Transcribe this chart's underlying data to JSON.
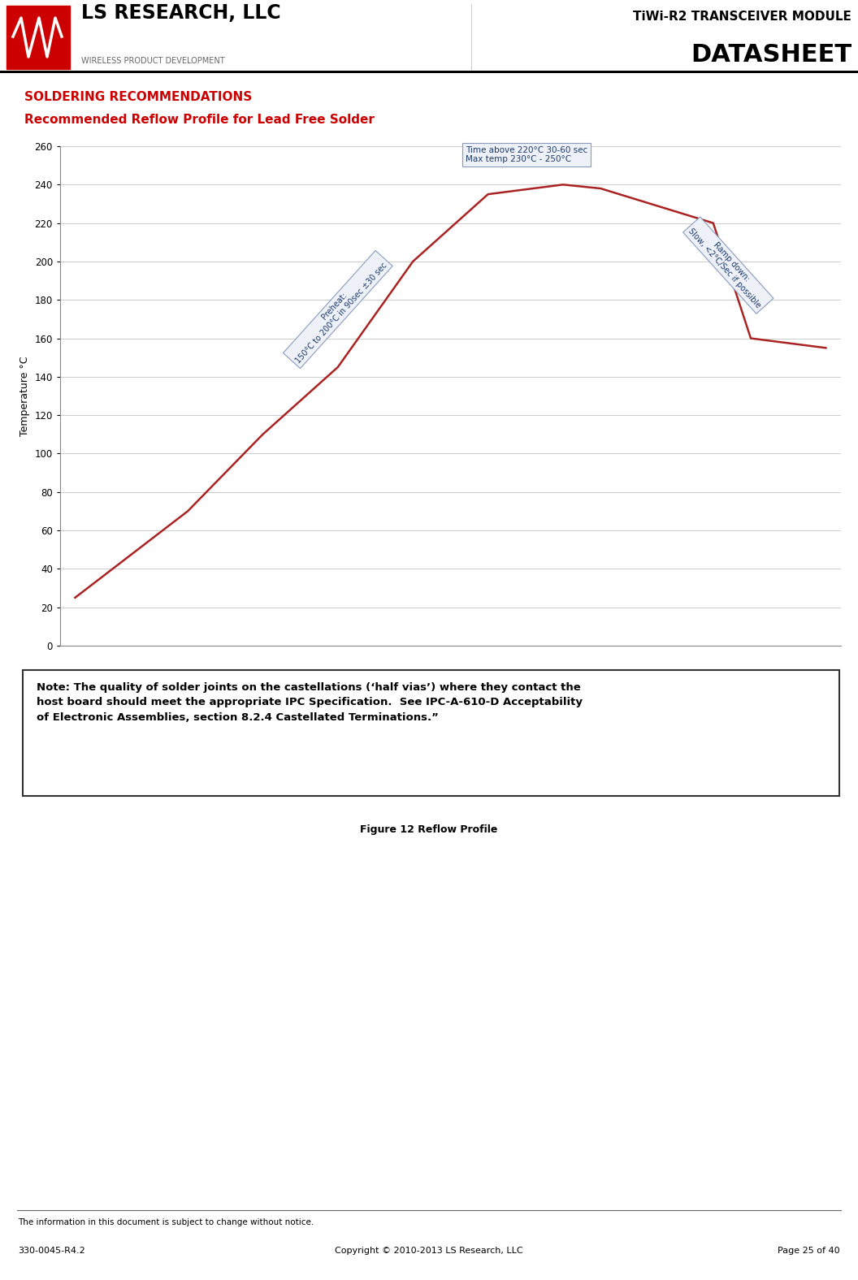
{
  "page_title_line1": "TiWi-R2 TRANSCEIVER MODULE",
  "page_title_line2": "DATASHEET",
  "section_title": "SOLDERING RECOMMENDATIONS",
  "subtitle": "Recommended Reflow Profile for Lead Free Solder",
  "ylabel": "Temperature °C",
  "ylim": [
    0,
    260
  ],
  "yticks": [
    0,
    20,
    40,
    60,
    80,
    100,
    120,
    140,
    160,
    180,
    200,
    220,
    240,
    260
  ],
  "curve_x": [
    0,
    0.5,
    1.5,
    2.5,
    3.5,
    4.5,
    5.5,
    6.5,
    7.0,
    7.5,
    8.5,
    9.0,
    10
  ],
  "curve_y": [
    25,
    40,
    70,
    110,
    145,
    200,
    235,
    240,
    238,
    232,
    220,
    160,
    155
  ],
  "curve_color": "#aa2222",
  "curve_linewidth": 1.8,
  "annotation_box1_text": "Time above 220°C 30-60 sec\nMax temp 230°C - 250°C",
  "preheat_text": "Preheat:\n150°C to 200°C in 90sec ±30 sec",
  "rampdown_text": "Ramp down:\nSlow, <2°C/Sec if possible",
  "note_text": "Note: The quality of solder joints on the castellations (‘half vias’) where they contact the\nhost board should meet the appropriate IPC Specification.  See IPC-A-610-D Acceptability\nof Electronic Assemblies, section 8.2.4 Castellated Terminations.”",
  "figure_caption": "Figure 12 Reflow Profile",
  "footer_left": "330-0045-R4.2",
  "footer_center": "Copyright © 2010-2013 LS Research, LLC",
  "footer_right": "Page 25 of 40",
  "footer_notice": "The information in this document is subject to change without notice.",
  "bg_color": "#ffffff",
  "grid_color": "#cccccc",
  "section_color": "#cc0000",
  "subtitle_color": "#cc0000",
  "ann_text_color": "#1a3a6b",
  "ann_face_color": "#eef1f8",
  "ann_edge_color": "#8a9abf"
}
